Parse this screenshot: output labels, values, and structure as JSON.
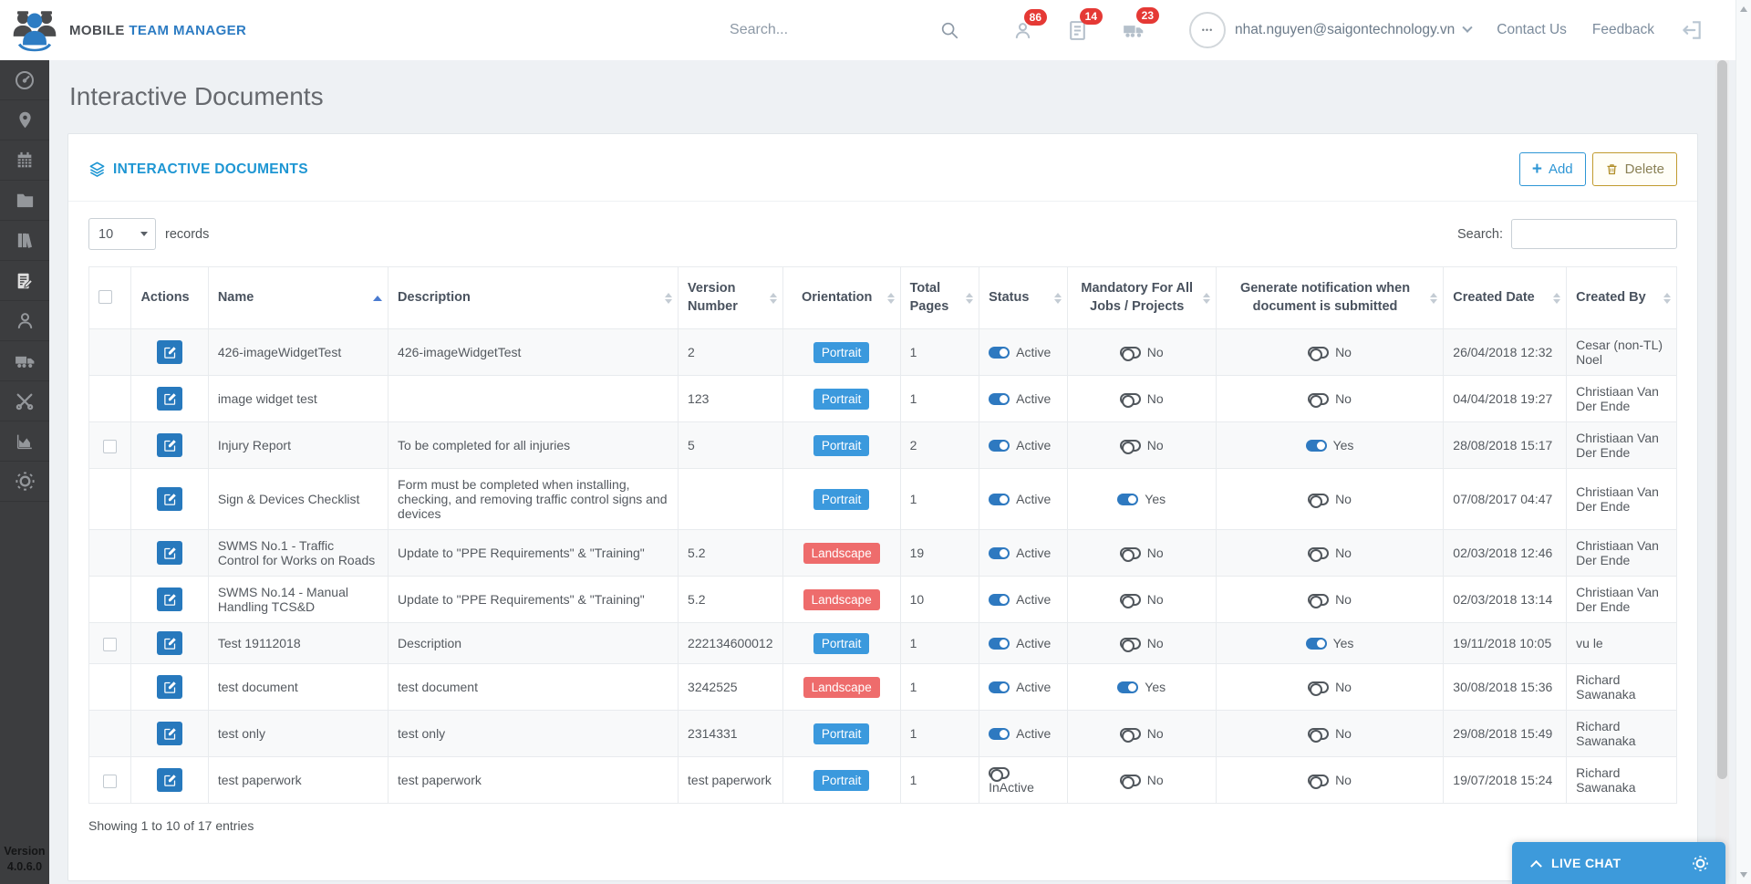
{
  "page": {
    "title": "Interactive Documents"
  },
  "header": {
    "brand": {
      "mobile": "MOBILE",
      "team_manager": "TEAM MANAGER"
    },
    "search_placeholder": "Search...",
    "notifications": [
      {
        "icon": "users-icon",
        "count": "86"
      },
      {
        "icon": "form-icon",
        "count": "14"
      },
      {
        "icon": "truck-icon",
        "count": "23"
      }
    ],
    "user_email": "nhat.nguyen@saigontechnology.vn",
    "links": [
      {
        "label": "Contact Us"
      },
      {
        "label": "Feedback"
      }
    ]
  },
  "sidebar": {
    "items": [
      {
        "icon": "dashboard-icon",
        "active": false
      },
      {
        "icon": "location-icon",
        "active": false
      },
      {
        "icon": "calendar-icon",
        "active": false
      },
      {
        "icon": "folder-icon",
        "active": false
      },
      {
        "icon": "library-icon",
        "active": false
      },
      {
        "icon": "interactive-documents-icon",
        "active": true
      },
      {
        "icon": "users-icon",
        "active": false
      },
      {
        "icon": "vehicles-icon",
        "active": false
      },
      {
        "icon": "tools-icon",
        "active": false
      },
      {
        "icon": "reports-icon",
        "active": false
      },
      {
        "icon": "settings-icon",
        "active": false
      }
    ],
    "version_label": "Version",
    "version_number": "4.0.6.0"
  },
  "panel": {
    "title": "INTERACTIVE DOCUMENTS",
    "add_button": "Add",
    "delete_button": "Delete",
    "records_value": "10",
    "records_label": "records",
    "search_label": "Search:",
    "footer_text": "Showing 1 to 10 of 17 entries"
  },
  "table": {
    "columns": [
      {
        "label": "",
        "sort": "none"
      },
      {
        "label": "Actions",
        "sort": "none"
      },
      {
        "label": "Name",
        "sort": "asc"
      },
      {
        "label": "Description",
        "sort": "both"
      },
      {
        "label": "Version Number",
        "sort": "both"
      },
      {
        "label": "Orientation",
        "sort": "both"
      },
      {
        "label": "Total Pages",
        "sort": "both"
      },
      {
        "label": "Status",
        "sort": "both"
      },
      {
        "label": "Mandatory For All Jobs / Projects",
        "sort": "both"
      },
      {
        "label": "Generate notification when document is submitted",
        "sort": "both"
      },
      {
        "label": "Created Date",
        "sort": "both"
      },
      {
        "label": "Created By",
        "sort": "both"
      }
    ],
    "rows": [
      {
        "checkbox": false,
        "name": "426-imageWidgetTest",
        "description": "426-imageWidgetTest",
        "version": "2",
        "orientation": "Portrait",
        "pages": "1",
        "status": {
          "label": "Active",
          "on": true
        },
        "mandatory": {
          "label": "No",
          "on": false
        },
        "notification": {
          "label": "No",
          "on": false
        },
        "created_date": "26/04/2018 12:32",
        "created_by": "Cesar (non-TL) Noel"
      },
      {
        "checkbox": false,
        "name": "image widget test",
        "description": "",
        "version": "123",
        "orientation": "Portrait",
        "pages": "1",
        "status": {
          "label": "Active",
          "on": true
        },
        "mandatory": {
          "label": "No",
          "on": false
        },
        "notification": {
          "label": "No",
          "on": false
        },
        "created_date": "04/04/2018 19:27",
        "created_by": "Christiaan Van Der Ende"
      },
      {
        "checkbox": true,
        "name": "Injury Report",
        "description": "To be completed for all injuries",
        "version": "5",
        "orientation": "Portrait",
        "pages": "2",
        "status": {
          "label": "Active",
          "on": true
        },
        "mandatory": {
          "label": "No",
          "on": false
        },
        "notification": {
          "label": "Yes",
          "on": true
        },
        "created_date": "28/08/2018 15:17",
        "created_by": "Christiaan Van Der Ende"
      },
      {
        "checkbox": false,
        "name": "Sign & Devices Checklist",
        "description": "Form must be completed when installing, checking, and removing traffic control signs and devices",
        "version": "",
        "orientation": "Portrait",
        "pages": "1",
        "status": {
          "label": "Active",
          "on": true
        },
        "mandatory": {
          "label": "Yes",
          "on": true
        },
        "notification": {
          "label": "No",
          "on": false
        },
        "created_date": "07/08/2017 04:47",
        "created_by": "Christiaan Van Der Ende"
      },
      {
        "checkbox": false,
        "name": "SWMS No.1 - Traffic Control for Works on Roads",
        "description": "Update to \"PPE Requirements\" & \"Training\"",
        "version": "5.2",
        "orientation": "Landscape",
        "pages": "19",
        "status": {
          "label": "Active",
          "on": true
        },
        "mandatory": {
          "label": "No",
          "on": false
        },
        "notification": {
          "label": "No",
          "on": false
        },
        "created_date": "02/03/2018 12:46",
        "created_by": "Christiaan Van Der Ende"
      },
      {
        "checkbox": false,
        "name": "SWMS No.14 - Manual Handling TCS&D",
        "description": "Update to \"PPE Requirements\" & \"Training\"",
        "version": "5.2",
        "orientation": "Landscape",
        "pages": "10",
        "status": {
          "label": "Active",
          "on": true
        },
        "mandatory": {
          "label": "No",
          "on": false
        },
        "notification": {
          "label": "No",
          "on": false
        },
        "created_date": "02/03/2018 13:14",
        "created_by": "Christiaan Van Der Ende"
      },
      {
        "checkbox": true,
        "name": "Test 19112018",
        "description": "Description",
        "version": "222134600012",
        "orientation": "Portrait",
        "pages": "1",
        "status": {
          "label": "Active",
          "on": true
        },
        "mandatory": {
          "label": "No",
          "on": false
        },
        "notification": {
          "label": "Yes",
          "on": true
        },
        "created_date": "19/11/2018 10:05",
        "created_by": "vu le"
      },
      {
        "checkbox": false,
        "name": "test document",
        "description": "test document",
        "version": "3242525",
        "orientation": "Landscape",
        "pages": "1",
        "status": {
          "label": "Active",
          "on": true
        },
        "mandatory": {
          "label": "Yes",
          "on": true
        },
        "notification": {
          "label": "No",
          "on": false
        },
        "created_date": "30/08/2018 15:36",
        "created_by": "Richard Sawanaka"
      },
      {
        "checkbox": false,
        "name": "test only",
        "description": "test only",
        "version": "2314331",
        "orientation": "Portrait",
        "pages": "1",
        "status": {
          "label": "Active",
          "on": true
        },
        "mandatory": {
          "label": "No",
          "on": false
        },
        "notification": {
          "label": "No",
          "on": false
        },
        "created_date": "29/08/2018 15:49",
        "created_by": "Richard Sawanaka"
      },
      {
        "checkbox": true,
        "name": "test paperwork",
        "description": "test paperwork",
        "version": "test paperwork",
        "orientation": "Portrait",
        "pages": "1",
        "status": {
          "label": "InActive",
          "on": false
        },
        "mandatory": {
          "label": "No",
          "on": false
        },
        "notification": {
          "label": "No",
          "on": false
        },
        "created_date": "19/07/2018 15:24",
        "created_by": "Richard Sawanaka"
      }
    ]
  },
  "live_chat": {
    "label": "LIVE CHAT"
  },
  "colors": {
    "accent_blue": "#1e96d3",
    "portrait_badge": "#3b99dd",
    "landscape_badge": "#ee6c6c",
    "notification_red": "#e53935",
    "toggle_on_blue": "#2e79c0",
    "edit_button_blue": "#2779bd",
    "live_chat_blue": "#3d9adb",
    "delete_gold": "#c19b2e",
    "sidebar_dark": "#3c3d3f"
  }
}
